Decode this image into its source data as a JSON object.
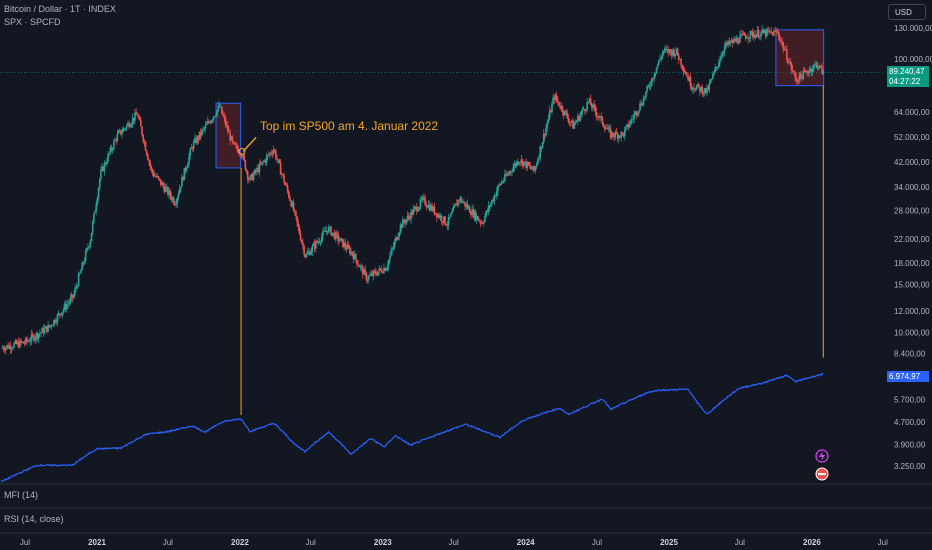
{
  "header": {
    "symbol_title": "Bitcoin / Dollar · 1T · INDEX",
    "overlay_title": "SPX · SPCFD"
  },
  "currency_button": "USD",
  "annotation": "Top im SP500 am 4. Januar 2022",
  "price_tags": {
    "btc_price": "89.240,47",
    "btc_countdown": "04:27:22",
    "spx_price": "6.974,97"
  },
  "panes": {
    "mfi_label": "MFI (14)",
    "rsi_label": "RSI (14, close)"
  },
  "colors": {
    "background": "#131722",
    "btc_up": "#26a69a",
    "btc_down": "#ef5350",
    "spx_line": "#2962ff",
    "annotation": "#f5a623",
    "highlight_fill": "#4a1f27",
    "highlight_border": "#2962ff",
    "btc_tag": "#089981"
  },
  "chart_data": {
    "type": "line",
    "scale": "log",
    "y_tick_labels": [
      "130.000,00",
      "100.000,00",
      "64.000,00",
      "52.000,00",
      "42.000,00",
      "34.000,00",
      "28.000,00",
      "22.000,00",
      "18.000,00",
      "15.000,00",
      "12.000,00",
      "10.000,00",
      "8.400,00",
      "6.974,97",
      "5.700,00",
      "4.700,00",
      "3.900,00",
      "3.250,00"
    ],
    "x_tick_labels": [
      "Jul",
      "2021",
      "Jul",
      "2022",
      "Jul",
      "2023",
      "Jul",
      "2024",
      "Jul",
      "2025",
      "Jul",
      "2026",
      "Jul"
    ],
    "series": [
      {
        "name": "Bitcoin / Dollar",
        "kind": "candles",
        "points": [
          [
            "2020-05-01",
            8800
          ],
          [
            "2020-07-01",
            9200
          ],
          [
            "2020-09-01",
            10500
          ],
          [
            "2020-11-01",
            13500
          ],
          [
            "2020-12-15",
            22000
          ],
          [
            "2021-01-10",
            38000
          ],
          [
            "2021-02-20",
            52000
          ],
          [
            "2021-04-14",
            63000
          ],
          [
            "2021-05-20",
            39000
          ],
          [
            "2021-07-20",
            30000
          ],
          [
            "2021-09-01",
            48000
          ],
          [
            "2021-11-10",
            67000
          ],
          [
            "2021-12-15",
            48000
          ],
          [
            "2022-01-04",
            46000
          ],
          [
            "2022-01-25",
            36000
          ],
          [
            "2022-03-28",
            47000
          ],
          [
            "2022-05-15",
            29000
          ],
          [
            "2022-06-18",
            19000
          ],
          [
            "2022-08-14",
            24000
          ],
          [
            "2022-10-15",
            19500
          ],
          [
            "2022-11-21",
            15800
          ],
          [
            "2023-01-10",
            17400
          ],
          [
            "2023-02-15",
            24500
          ],
          [
            "2023-04-14",
            30500
          ],
          [
            "2023-06-15",
            25000
          ],
          [
            "2023-07-15",
            31000
          ],
          [
            "2023-09-11",
            25200
          ],
          [
            "2023-10-25",
            34500
          ],
          [
            "2023-12-15",
            43000
          ],
          [
            "2024-01-23",
            39000
          ],
          [
            "2024-03-14",
            73000
          ],
          [
            "2024-05-01",
            57000
          ],
          [
            "2024-06-10",
            70000
          ],
          [
            "2024-08-05",
            53000
          ],
          [
            "2024-09-06",
            53000
          ],
          [
            "2024-10-29",
            72000
          ],
          [
            "2024-12-17",
            107000
          ],
          [
            "2025-01-20",
            106000
          ],
          [
            "2025-02-28",
            80000
          ],
          [
            "2025-04-08",
            76000
          ],
          [
            "2025-05-22",
            111000
          ],
          [
            "2025-07-14",
            122000
          ],
          [
            "2025-08-14",
            124000
          ],
          [
            "2025-10-06",
            125000
          ],
          [
            "2025-11-21",
            84000
          ],
          [
            "2025-12-15",
            89000
          ],
          [
            "2026-01-14",
            96000
          ],
          [
            "2026-01-30",
            89240
          ]
        ]
      },
      {
        "name": "SPX",
        "kind": "line",
        "points": [
          [
            "2020-05-01",
            2850
          ],
          [
            "2020-08-01",
            3270
          ],
          [
            "2020-10-30",
            3270
          ],
          [
            "2020-12-31",
            3750
          ],
          [
            "2021-03-04",
            3770
          ],
          [
            "2021-05-07",
            4230
          ],
          [
            "2021-07-01",
            4320
          ],
          [
            "2021-09-02",
            4530
          ],
          [
            "2021-10-04",
            4300
          ],
          [
            "2021-11-18",
            4700
          ],
          [
            "2022-01-04",
            4796
          ],
          [
            "2022-01-27",
            4330
          ],
          [
            "2022-03-29",
            4630
          ],
          [
            "2022-05-20",
            3900
          ],
          [
            "2022-06-16",
            3666
          ],
          [
            "2022-08-16",
            4305
          ],
          [
            "2022-10-12",
            3577
          ],
          [
            "2022-12-01",
            4080
          ],
          [
            "2023-01-05",
            3808
          ],
          [
            "2023-02-02",
            4180
          ],
          [
            "2023-03-13",
            3860
          ],
          [
            "2023-07-31",
            4590
          ],
          [
            "2023-10-27",
            4120
          ],
          [
            "2023-12-29",
            4770
          ],
          [
            "2024-03-28",
            5250
          ],
          [
            "2024-04-19",
            4970
          ],
          [
            "2024-07-16",
            5670
          ],
          [
            "2024-08-05",
            5190
          ],
          [
            "2024-11-11",
            6000
          ],
          [
            "2024-12-06",
            6090
          ],
          [
            "2025-02-19",
            6140
          ],
          [
            "2025-03-13",
            5520
          ],
          [
            "2025-04-08",
            4980
          ],
          [
            "2025-06-30",
            6200
          ],
          [
            "2025-08-29",
            6460
          ],
          [
            "2025-10-28",
            6890
          ],
          [
            "2025-11-20",
            6540
          ],
          [
            "2026-01-30",
            6975
          ]
        ]
      }
    ]
  }
}
